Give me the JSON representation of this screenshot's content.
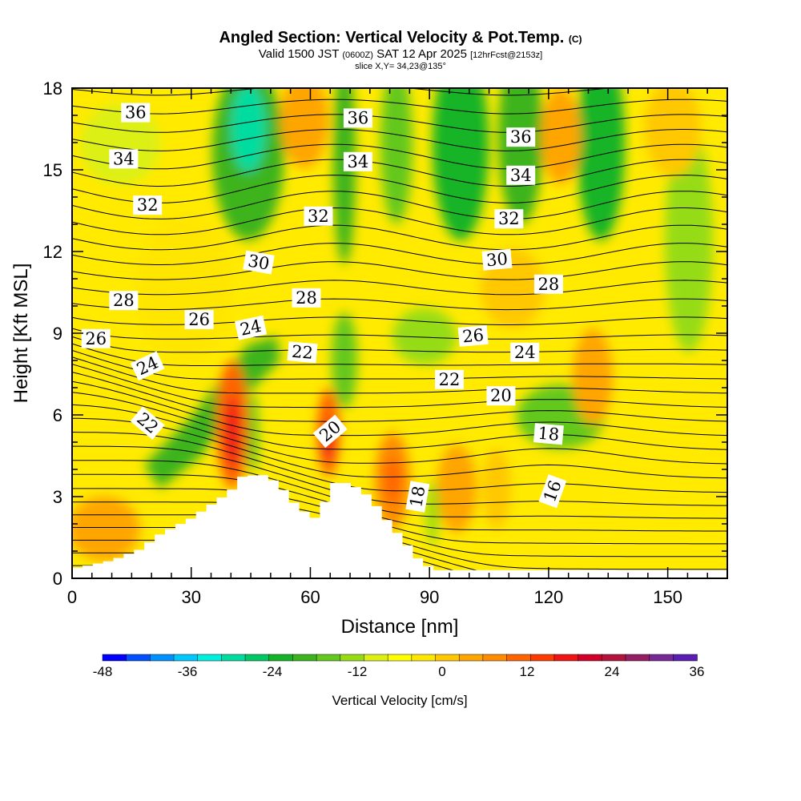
{
  "header": {
    "title": "Angled Section: Vertical Velocity & Pot.Temp.",
    "title_suffix": "(C)",
    "valid_prefix": "Valid 1500 JST",
    "valid_z": "(0600Z)",
    "valid_date": "SAT 12 Apr 2025",
    "forecast": "[12hrFcst@2153z]",
    "slice": "slice X,Y= 34,23@135°"
  },
  "chart_data": {
    "type": "heatmap",
    "xlabel": "Distance [nm]",
    "ylabel": "Height [Kft MSL]",
    "xlim": [
      0,
      165
    ],
    "ylim": [
      0,
      18
    ],
    "x_ticks": [
      "0",
      "30",
      "60",
      "90",
      "120",
      "150"
    ],
    "y_ticks": [
      "0",
      "3",
      "6",
      "9",
      "12",
      "15",
      "18"
    ],
    "colorbar": {
      "label": "Vertical Velocity [cm/s]",
      "range": [
        -48,
        36
      ],
      "step": 4,
      "tick_labels": [
        "-48",
        "-36",
        "-24",
        "-12",
        "0",
        "12",
        "24",
        "36"
      ],
      "colors": [
        "#0000ff",
        "#0050ff",
        "#0090ff",
        "#00c8ff",
        "#00f0e0",
        "#00dca0",
        "#00c864",
        "#14b428",
        "#3cb41e",
        "#64c81e",
        "#96dc14",
        "#dcf014",
        "#ffff00",
        "#ffe600",
        "#ffc800",
        "#ffa500",
        "#ff8c00",
        "#ff6400",
        "#ff3c00",
        "#f01414",
        "#d20028",
        "#b4143c",
        "#961e64",
        "#782896",
        "#5a1eb4"
      ]
    },
    "terrain": [
      {
        "x": 0,
        "h": 0.35
      },
      {
        "x": 10,
        "h": 0.65
      },
      {
        "x": 17,
        "h": 1.05
      },
      {
        "x": 22,
        "h": 1.6
      },
      {
        "x": 30,
        "h": 2.2
      },
      {
        "x": 34,
        "h": 2.6
      },
      {
        "x": 40,
        "h": 3.2
      },
      {
        "x": 43,
        "h": 3.75
      },
      {
        "x": 48,
        "h": 3.8
      },
      {
        "x": 52,
        "h": 3.5
      },
      {
        "x": 55,
        "h": 2.9
      },
      {
        "x": 58,
        "h": 2.5
      },
      {
        "x": 61,
        "h": 2.2
      },
      {
        "x": 63,
        "h": 2.6
      },
      {
        "x": 66,
        "h": 3.5
      },
      {
        "x": 70,
        "h": 3.5
      },
      {
        "x": 74,
        "h": 3.1
      },
      {
        "x": 77,
        "h": 2.6
      },
      {
        "x": 80,
        "h": 2.0
      },
      {
        "x": 84,
        "h": 1.3
      },
      {
        "x": 87,
        "h": 0.75
      },
      {
        "x": 91,
        "h": 0.3
      },
      {
        "x": 165,
        "h": 0.3
      }
    ],
    "isentrope_labels": [
      {
        "text": "36",
        "x": 16,
        "y": 17.1,
        "rot": 0
      },
      {
        "text": "34",
        "x": 13,
        "y": 15.4,
        "rot": 0
      },
      {
        "text": "32",
        "x": 19,
        "y": 13.7,
        "rot": 0
      },
      {
        "text": "28",
        "x": 13,
        "y": 10.2,
        "rot": 0
      },
      {
        "text": "26",
        "x": 6,
        "y": 8.8,
        "rot": 0
      },
      {
        "text": "26",
        "x": 32,
        "y": 9.5,
        "rot": 0
      },
      {
        "text": "24",
        "x": 19,
        "y": 7.8,
        "rot": -25
      },
      {
        "text": "22",
        "x": 19,
        "y": 5.7,
        "rot": 40
      },
      {
        "text": "24",
        "x": 45,
        "y": 9.2,
        "rot": -12
      },
      {
        "text": "30",
        "x": 47,
        "y": 11.6,
        "rot": 10
      },
      {
        "text": "28",
        "x": 59,
        "y": 10.3,
        "rot": 0
      },
      {
        "text": "22",
        "x": 58,
        "y": 8.3,
        "rot": 5
      },
      {
        "text": "20",
        "x": 65,
        "y": 5.4,
        "rot": -40
      },
      {
        "text": "32",
        "x": 62,
        "y": 13.3,
        "rot": 0
      },
      {
        "text": "36",
        "x": 72,
        "y": 16.9,
        "rot": 0
      },
      {
        "text": "34",
        "x": 72,
        "y": 15.3,
        "rot": 0
      },
      {
        "text": "22",
        "x": 95,
        "y": 7.3,
        "rot": 0
      },
      {
        "text": "26",
        "x": 101,
        "y": 8.9,
        "rot": -5
      },
      {
        "text": "30",
        "x": 107,
        "y": 11.7,
        "rot": -5
      },
      {
        "text": "32",
        "x": 110,
        "y": 13.2,
        "rot": 0
      },
      {
        "text": "34",
        "x": 113,
        "y": 14.8,
        "rot": 0
      },
      {
        "text": "36",
        "x": 113,
        "y": 16.2,
        "rot": 0
      },
      {
        "text": "28",
        "x": 120,
        "y": 10.8,
        "rot": 0
      },
      {
        "text": "24",
        "x": 114,
        "y": 8.3,
        "rot": 0
      },
      {
        "text": "20",
        "x": 108,
        "y": 6.7,
        "rot": 0
      },
      {
        "text": "18",
        "x": 87,
        "y": 3.0,
        "rot": -80
      },
      {
        "text": "18",
        "x": 120,
        "y": 5.3,
        "rot": 5
      },
      {
        "text": "16",
        "x": 121,
        "y": 3.2,
        "rot": -70
      }
    ]
  }
}
